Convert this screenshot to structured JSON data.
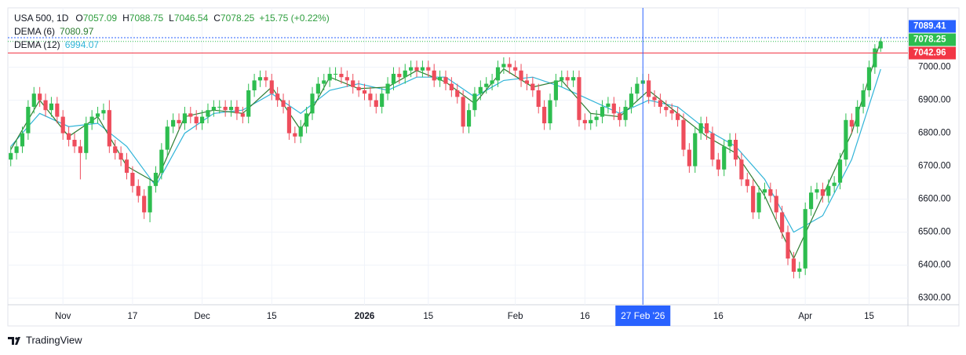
{
  "chart_data": {
    "type": "candlestick",
    "symbol": "USA 500, 1D",
    "ohlc_prefixes": [
      "O",
      "H",
      "L",
      "C"
    ],
    "change": "+15.75 (+0.22%)",
    "series": [
      {
        "name": "USA 500",
        "up_color": "#2dbd4f",
        "down_color": "#ee4d5c",
        "open": [
          6720,
          6740,
          6760,
          6800,
          6880,
          6920,
          6900,
          6870,
          6890,
          6850,
          6800,
          6780,
          6760,
          6740,
          6830,
          6850,
          6860,
          6870,
          6760,
          6740,
          6720,
          6680,
          6640,
          6610,
          6560,
          6640,
          6680,
          6750,
          6820,
          6840,
          6830,
          6860,
          6850,
          6830,
          6850,
          6870,
          6880,
          6880,
          6870,
          6880,
          6860,
          6850,
          6930,
          6960,
          6970,
          6960,
          6920,
          6900,
          6880,
          6800,
          6790,
          6820,
          6860,
          6920,
          6950,
          6960,
          6980,
          6980,
          6970,
          6960,
          6940,
          6930,
          6920,
          6900,
          6880,
          6920,
          6950,
          6980,
          6970,
          6990,
          7000,
          6990,
          7000,
          6990,
          6960,
          6970,
          6950,
          6930,
          6910,
          6820,
          6870,
          6920,
          6940,
          6950,
          6960,
          7000,
          7010,
          7000,
          6990,
          6960,
          6950,
          6930,
          6880,
          6830,
          6900,
          6960,
          6970,
          6960,
          6970,
          6840,
          6830,
          6840,
          6850,
          6880,
          6890,
          6860,
          6840,
          6880,
          6920,
          6950,
          6960,
          6910,
          6900,
          6880,
          6870,
          6860,
          6840,
          6750,
          6700,
          6800,
          6830,
          6800,
          6720,
          6690,
          6760,
          6780,
          6720,
          6660,
          6640,
          6560,
          6620,
          6630,
          6610,
          6560,
          6500,
          6420,
          6380,
          6390,
          6570,
          6620,
          6630,
          6610,
          6640,
          6650,
          6720,
          6840,
          6820,
          6880,
          6930,
          7000,
          7057.09
        ],
        "high": [
          6760,
          6780,
          6820,
          6900,
          6940,
          6940,
          6920,
          6910,
          6910,
          6870,
          6820,
          6800,
          6780,
          6850,
          6870,
          6880,
          6890,
          6900,
          6780,
          6760,
          6740,
          6700,
          6660,
          6630,
          6660,
          6700,
          6770,
          6840,
          6860,
          6860,
          6880,
          6880,
          6870,
          6870,
          6890,
          6900,
          6900,
          6900,
          6900,
          6900,
          6880,
          6950,
          6980,
          6990,
          6990,
          6980,
          6940,
          6920,
          6900,
          6820,
          6840,
          6880,
          6940,
          6970,
          6980,
          7000,
          7000,
          7000,
          6990,
          6980,
          6960,
          6950,
          6940,
          6920,
          6940,
          6970,
          7000,
          7000,
          7010,
          7020,
          7020,
          7020,
          7020,
          7010,
          6990,
          6990,
          6970,
          6950,
          6930,
          6890,
          6940,
          6960,
          6970,
          6980,
          7020,
          7030,
          7030,
          7020,
          7010,
          6980,
          6970,
          6950,
          6900,
          6920,
          6980,
          6990,
          6990,
          6990,
          6990,
          6860,
          6860,
          6870,
          6900,
          6910,
          6910,
          6880,
          6900,
          6940,
          6970,
          6980,
          6980,
          6930,
          6920,
          6900,
          6890,
          6880,
          6860,
          6770,
          6820,
          6850,
          6850,
          6820,
          6740,
          6780,
          6800,
          6800,
          6740,
          6680,
          6660,
          6640,
          6650,
          6650,
          6630,
          6580,
          6520,
          6440,
          6410,
          6590,
          6640,
          6650,
          6650,
          6660,
          6670,
          6740,
          6860,
          6860,
          6900,
          6950,
          7020,
          7070,
          7088.75
        ],
        "low": [
          6700,
          6720,
          6740,
          6780,
          6860,
          6880,
          6850,
          6850,
          6830,
          6780,
          6760,
          6740,
          6660,
          6720,
          6810,
          6830,
          6840,
          6740,
          6720,
          6700,
          6660,
          6620,
          6590,
          6540,
          6530,
          6620,
          6660,
          6730,
          6800,
          6810,
          6810,
          6830,
          6810,
          6810,
          6830,
          6850,
          6860,
          6850,
          6850,
          6840,
          6830,
          6830,
          6910,
          6940,
          6940,
          6900,
          6880,
          6860,
          6780,
          6770,
          6770,
          6800,
          6840,
          6900,
          6930,
          6940,
          6960,
          6950,
          6940,
          6920,
          6910,
          6900,
          6880,
          6860,
          6860,
          6900,
          6930,
          6950,
          6950,
          6970,
          6970,
          6970,
          6970,
          6940,
          6940,
          6930,
          6910,
          6890,
          6800,
          6800,
          6850,
          6900,
          6920,
          6930,
          6940,
          6980,
          6980,
          6970,
          6940,
          6930,
          6910,
          6860,
          6810,
          6810,
          6880,
          6940,
          6940,
          6940,
          6820,
          6810,
          6810,
          6820,
          6830,
          6860,
          6840,
          6820,
          6820,
          6860,
          6900,
          6930,
          6890,
          6880,
          6860,
          6850,
          6840,
          6820,
          6730,
          6680,
          6680,
          6780,
          6780,
          6700,
          6670,
          6670,
          6740,
          6700,
          6640,
          6620,
          6540,
          6540,
          6600,
          6590,
          6540,
          6480,
          6400,
          6360,
          6360,
          6370,
          6550,
          6600,
          6590,
          6590,
          6620,
          6630,
          6700,
          6800,
          6800,
          6860,
          6910,
          6980,
          7046.54
        ],
        "close": [
          6740,
          6760,
          6800,
          6880,
          6920,
          6900,
          6870,
          6890,
          6850,
          6800,
          6780,
          6760,
          6740,
          6830,
          6850,
          6860,
          6870,
          6760,
          6740,
          6720,
          6680,
          6640,
          6610,
          6560,
          6640,
          6680,
          6750,
          6820,
          6840,
          6830,
          6860,
          6850,
          6830,
          6850,
          6870,
          6880,
          6880,
          6870,
          6880,
          6860,
          6850,
          6930,
          6960,
          6970,
          6960,
          6920,
          6900,
          6880,
          6800,
          6790,
          6820,
          6860,
          6920,
          6950,
          6960,
          6980,
          6980,
          6970,
          6960,
          6940,
          6930,
          6920,
          6900,
          6880,
          6920,
          6950,
          6980,
          6970,
          6990,
          7000,
          6990,
          7000,
          6990,
          6960,
          6970,
          6950,
          6930,
          6910,
          6820,
          6870,
          6920,
          6940,
          6950,
          6960,
          7000,
          7010,
          7000,
          6990,
          6960,
          6950,
          6930,
          6880,
          6830,
          6900,
          6960,
          6970,
          6960,
          6970,
          6840,
          6830,
          6840,
          6850,
          6880,
          6890,
          6860,
          6840,
          6880,
          6920,
          6950,
          6960,
          6910,
          6900,
          6880,
          6870,
          6860,
          6840,
          6750,
          6700,
          6800,
          6830,
          6800,
          6720,
          6690,
          6760,
          6780,
          6720,
          6660,
          6640,
          6560,
          6620,
          6630,
          6610,
          6560,
          6500,
          6420,
          6380,
          6390,
          6570,
          6620,
          6630,
          6610,
          6640,
          6650,
          6720,
          6840,
          6820,
          6880,
          6930,
          7000,
          7057.09,
          7078.25
        ]
      },
      {
        "name": "DEMA (6)",
        "type": "line",
        "color": "#2e7d32",
        "x": [
          0,
          5,
          10,
          15,
          20,
          25,
          30,
          35,
          40,
          45,
          50,
          55,
          60,
          65,
          70,
          75,
          80,
          85,
          90,
          95,
          100,
          105,
          110,
          115,
          120,
          125,
          130,
          135,
          140,
          145,
          150
        ],
        "values": [
          6750,
          6900,
          6790,
          6850,
          6700,
          6650,
          6850,
          6870,
          6860,
          6940,
          6810,
          6970,
          6935,
          6940,
          6990,
          6955,
          6890,
          6995,
          6940,
          6960,
          6860,
          6850,
          6930,
          6860,
          6790,
          6740,
          6610,
          6420,
          6610,
          6800,
          7080.97
        ]
      },
      {
        "name": "DEMA (12)",
        "type": "line",
        "color": "#30b4d8",
        "x": [
          0,
          5,
          10,
          15,
          20,
          25,
          30,
          35,
          40,
          45,
          50,
          55,
          60,
          65,
          70,
          75,
          80,
          85,
          90,
          95,
          100,
          105,
          110,
          115,
          120,
          125,
          130,
          135,
          140,
          145,
          150
        ],
        "values": [
          6760,
          6860,
          6820,
          6830,
          6760,
          6640,
          6800,
          6860,
          6870,
          6920,
          6860,
          6930,
          6950,
          6930,
          6970,
          6970,
          6910,
          6960,
          6970,
          6940,
          6900,
          6860,
          6900,
          6880,
          6810,
          6760,
          6660,
          6500,
          6550,
          6720,
          6994.07
        ]
      }
    ],
    "xlim": [
      -0.5,
      154.7
    ],
    "xticks": [
      {
        "value": 9,
        "label": "Nov"
      },
      {
        "value": 21,
        "label": "17"
      },
      {
        "value": 33,
        "label": "Dec"
      },
      {
        "value": 45,
        "label": "15"
      },
      {
        "value": 61,
        "label": "2026"
      },
      {
        "value": 72,
        "label": "15"
      },
      {
        "value": 87,
        "label": "Feb"
      },
      {
        "value": 99,
        "label": "16"
      },
      {
        "value": 122,
        "label": "16"
      },
      {
        "value": 137,
        "label": "Apr"
      },
      {
        "value": 148,
        "label": "15"
      }
    ],
    "ylim": [
      6280,
      7180
    ],
    "yticks": [
      {
        "value": 6300,
        "label": "6300.00"
      },
      {
        "value": 6400,
        "label": "6400.00"
      },
      {
        "value": 6500,
        "label": "6500.00"
      },
      {
        "value": 6600,
        "label": "6600.00"
      },
      {
        "value": 6700,
        "label": "6700.00"
      },
      {
        "value": 6800,
        "label": "6800.00"
      },
      {
        "value": 6900,
        "label": "6900.00"
      },
      {
        "value": 7000,
        "label": "7000.00"
      }
    ],
    "grid": true,
    "crosshair": {
      "x": 109,
      "x_label": "27 Feb '26",
      "price": 7089.41,
      "color": "#2962ff"
    },
    "price_line": {
      "value": 7042.96,
      "color": "#f23645"
    }
  },
  "footer": "TradingView"
}
